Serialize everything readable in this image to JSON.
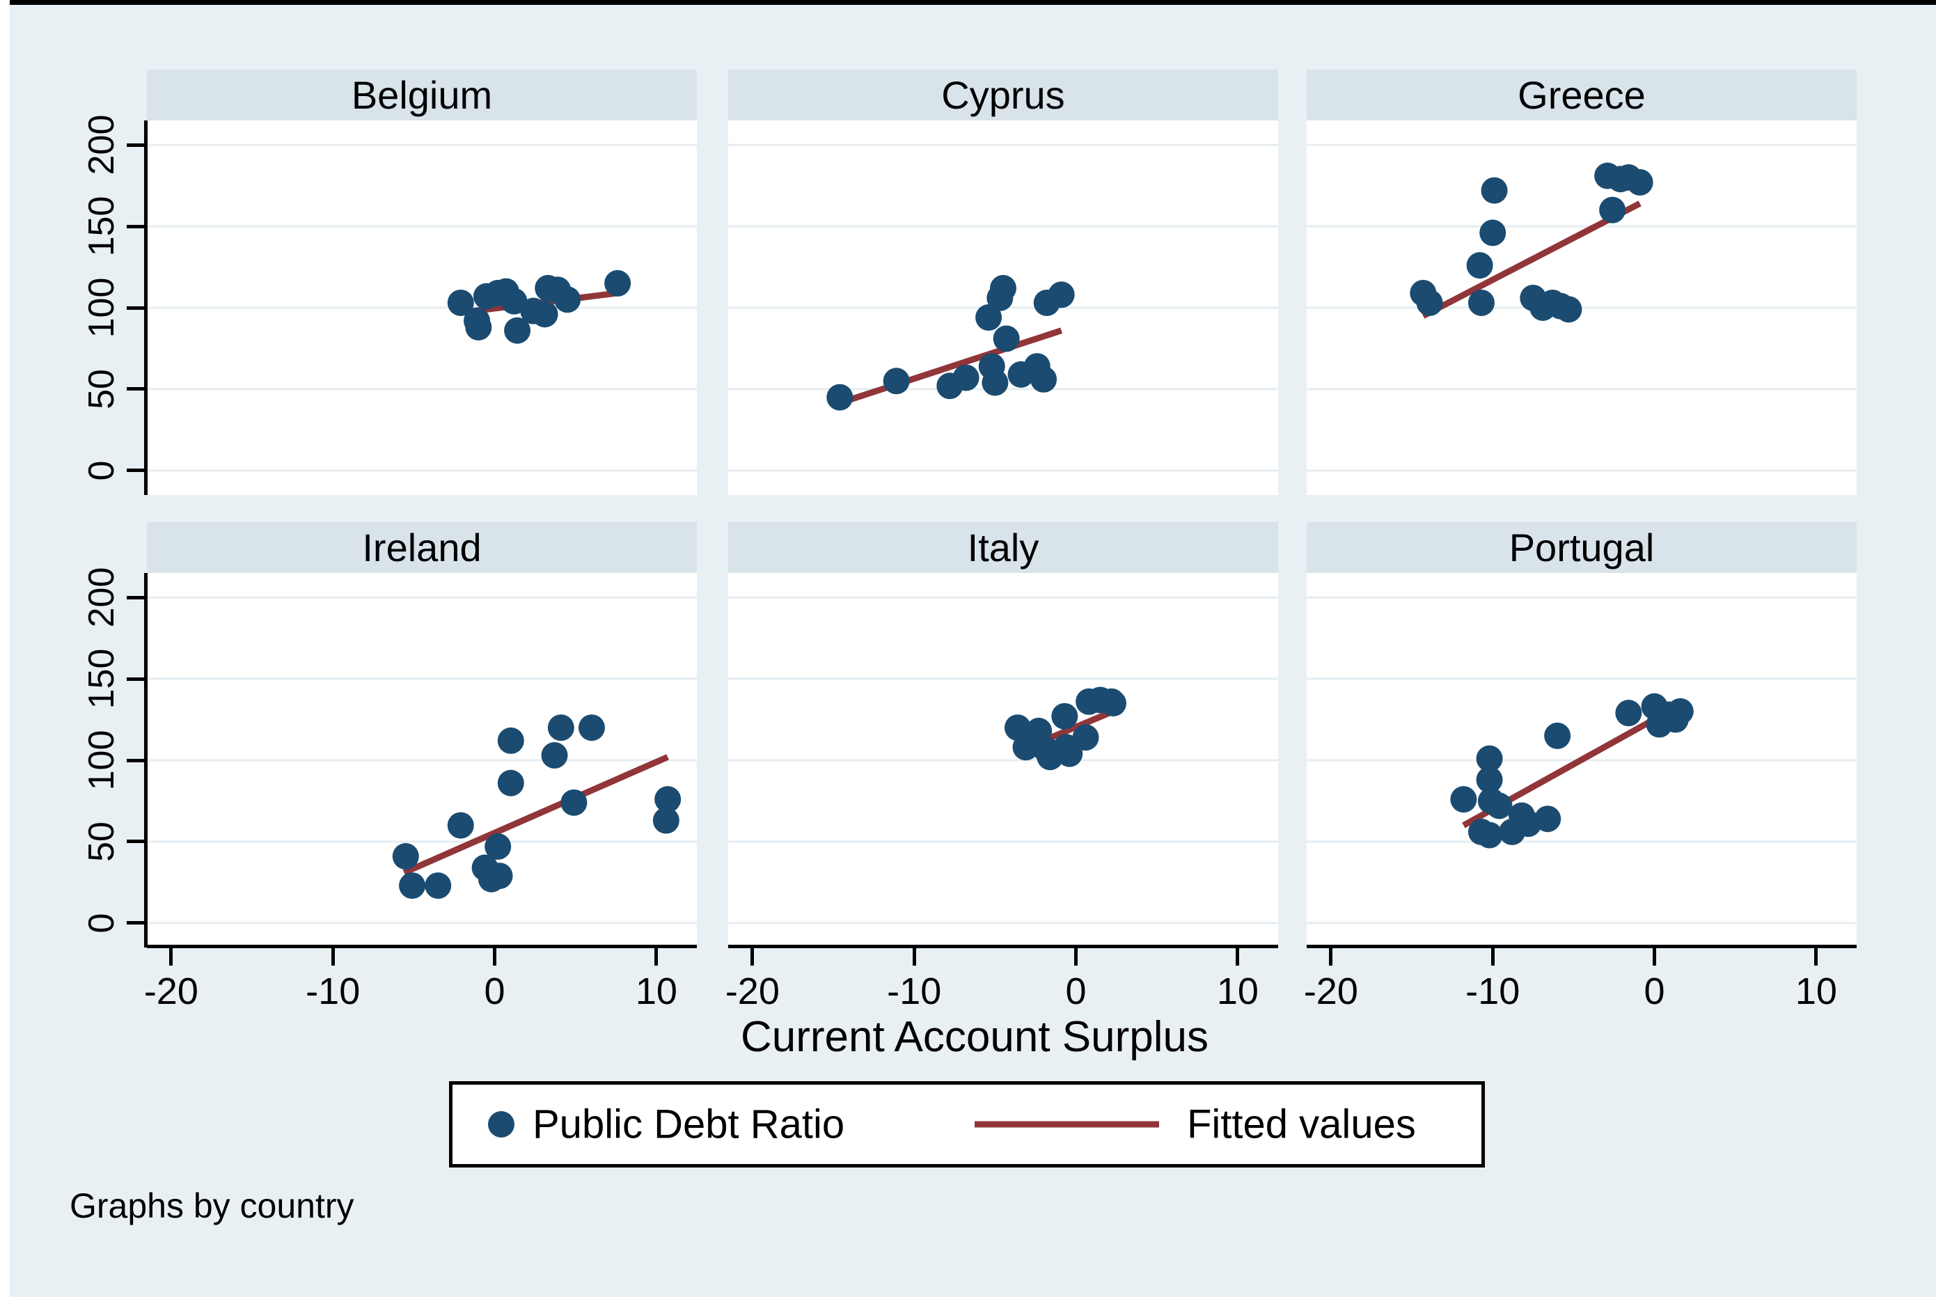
{
  "figure": {
    "axis_title": "Current Account Surplus",
    "caption": "Graphs by country"
  },
  "legend": {
    "marker_label": "Public Debt Ratio",
    "line_label": "Fitted values"
  },
  "colors": {
    "background": "#e9f0f4",
    "panel_header_band": "#d8e3ea",
    "plot_background": "#ffffff",
    "gridline": "#e6edf2",
    "point": "#1b4b70",
    "fit_line": "#903538",
    "axis": "#000000"
  },
  "chart_data": {
    "type": "scatter",
    "facet_by": "country",
    "title": "",
    "xlabel": "Current Account Surplus",
    "ylabel": "",
    "xlim": [
      -21.5,
      12.5
    ],
    "ylim": [
      -15,
      215
    ],
    "xticks": [
      -20,
      -10,
      0,
      10
    ],
    "yticks": [
      0,
      50,
      100,
      150,
      200
    ],
    "grid": "horizontal",
    "legend_position": "bottom",
    "legend_entries": [
      "Public Debt Ratio",
      "Fitted values"
    ],
    "panels": [
      {
        "title": "Belgium",
        "points": [
          [
            -2.1,
            103
          ],
          [
            -1.1,
            92
          ],
          [
            -1.0,
            88
          ],
          [
            -0.5,
            107
          ],
          [
            0.2,
            109
          ],
          [
            0.7,
            110
          ],
          [
            1.2,
            104
          ],
          [
            1.4,
            86
          ],
          [
            2.4,
            98
          ],
          [
            3.1,
            96
          ],
          [
            3.3,
            112
          ],
          [
            3.9,
            111
          ],
          [
            4.5,
            105
          ],
          [
            7.6,
            115
          ]
        ],
        "fit": [
          [
            -2.1,
            97
          ],
          [
            7.6,
            109
          ]
        ]
      },
      {
        "title": "Cyprus",
        "points": [
          [
            -14.6,
            45
          ],
          [
            -11.1,
            55
          ],
          [
            -7.8,
            52
          ],
          [
            -6.8,
            57
          ],
          [
            -5.4,
            94
          ],
          [
            -5.2,
            64
          ],
          [
            -5.0,
            54
          ],
          [
            -4.7,
            106
          ],
          [
            -4.5,
            112
          ],
          [
            -4.3,
            81
          ],
          [
            -3.4,
            59
          ],
          [
            -2.4,
            64
          ],
          [
            -2.0,
            56
          ],
          [
            -1.8,
            103
          ],
          [
            -0.9,
            108
          ]
        ],
        "fit": [
          [
            -14.6,
            41.5
          ],
          [
            -0.9,
            86
          ]
        ]
      },
      {
        "title": "Greece",
        "points": [
          [
            -14.3,
            109
          ],
          [
            -13.9,
            103
          ],
          [
            -10.8,
            126
          ],
          [
            -10.7,
            103
          ],
          [
            -10.0,
            146
          ],
          [
            -9.9,
            172
          ],
          [
            -7.5,
            106
          ],
          [
            -6.9,
            100
          ],
          [
            -6.3,
            103
          ],
          [
            -5.8,
            101
          ],
          [
            -5.3,
            99
          ],
          [
            -2.9,
            181
          ],
          [
            -2.6,
            160
          ],
          [
            -2.1,
            179
          ],
          [
            -1.6,
            180
          ],
          [
            -0.9,
            177
          ]
        ],
        "fit": [
          [
            -14.3,
            95
          ],
          [
            -0.9,
            164
          ]
        ]
      },
      {
        "title": "Ireland",
        "points": [
          [
            -5.5,
            41
          ],
          [
            -5.1,
            23
          ],
          [
            -3.5,
            23
          ],
          [
            -2.1,
            60
          ],
          [
            -0.6,
            34
          ],
          [
            -0.2,
            27
          ],
          [
            0.3,
            29
          ],
          [
            0.2,
            47
          ],
          [
            1.0,
            86
          ],
          [
            1.0,
            112
          ],
          [
            3.7,
            103
          ],
          [
            4.1,
            120
          ],
          [
            4.9,
            74
          ],
          [
            6.0,
            120
          ],
          [
            10.6,
            63
          ],
          [
            10.7,
            76
          ]
        ],
        "fit": [
          [
            -5.6,
            31
          ],
          [
            10.7,
            102
          ]
        ]
      },
      {
        "title": "Italy",
        "points": [
          [
            -3.6,
            120
          ],
          [
            -3.1,
            108
          ],
          [
            -2.3,
            118
          ],
          [
            -1.8,
            106
          ],
          [
            -1.6,
            102
          ],
          [
            -0.7,
            127
          ],
          [
            -0.6,
            108
          ],
          [
            -0.4,
            104
          ],
          [
            0.6,
            114
          ],
          [
            0.8,
            136
          ],
          [
            1.5,
            137
          ],
          [
            2.2,
            136
          ],
          [
            2.3,
            135
          ]
        ],
        "fit": [
          [
            -3.7,
            105
          ],
          [
            2.3,
            130
          ]
        ]
      },
      {
        "title": "Portugal",
        "points": [
          [
            -11.8,
            76
          ],
          [
            -10.7,
            56
          ],
          [
            -10.2,
            101
          ],
          [
            -10.2,
            88
          ],
          [
            -10.2,
            54
          ],
          [
            -10.1,
            75
          ],
          [
            -9.6,
            72
          ],
          [
            -8.8,
            56
          ],
          [
            -8.2,
            66
          ],
          [
            -7.8,
            61
          ],
          [
            -6.6,
            64
          ],
          [
            -6.0,
            115
          ],
          [
            -1.6,
            129
          ],
          [
            0.0,
            133
          ],
          [
            0.3,
            122
          ],
          [
            0.9,
            128
          ],
          [
            1.3,
            125
          ],
          [
            1.6,
            130
          ]
        ],
        "fit": [
          [
            -11.8,
            60
          ],
          [
            1.6,
            134
          ]
        ]
      }
    ]
  }
}
